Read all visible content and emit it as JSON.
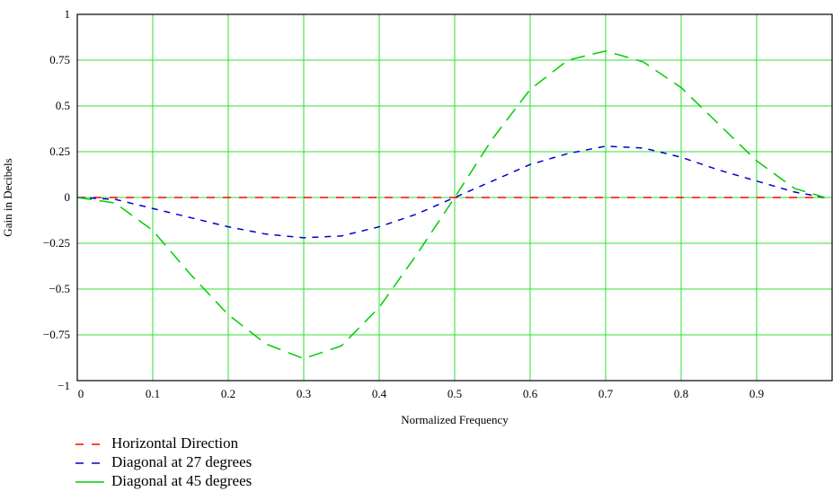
{
  "chart_data": {
    "type": "line",
    "title": "",
    "xlabel": "Normalized Frequency",
    "ylabel": "Gain in Decibels",
    "xlim": [
      0,
      1
    ],
    "ylim": [
      -1,
      1
    ],
    "grid": true,
    "legend_position": "bottom-left",
    "x_ticks": [
      "0",
      "0.1",
      "0.2",
      "0.3",
      "0.4",
      "0.5",
      "0.6",
      "0.7",
      "0.8",
      "0.9"
    ],
    "y_ticks": [
      "1",
      "0.75",
      "0.5",
      "0.25",
      "0",
      "−0.25",
      "−0.5",
      "−0.75",
      "−1"
    ],
    "x": [
      0,
      0.05,
      0.1,
      0.15,
      0.2,
      0.25,
      0.3,
      0.35,
      0.4,
      0.45,
      0.5,
      0.55,
      0.6,
      0.65,
      0.7,
      0.75,
      0.8,
      0.85,
      0.9,
      0.95,
      0.99
    ],
    "series": [
      {
        "name": "Horizontal Direction",
        "color": "#ff0000",
        "values": [
          0,
          0,
          0,
          0,
          0,
          0,
          0,
          0,
          0,
          0,
          0,
          0,
          0,
          0,
          0,
          0,
          0,
          0,
          0,
          0,
          0
        ]
      },
      {
        "name": "Diagonal at 27 degrees",
        "color": "#0000cc",
        "values": [
          0,
          -0.01,
          -0.06,
          -0.11,
          -0.16,
          -0.2,
          -0.22,
          -0.21,
          -0.16,
          -0.09,
          0,
          0.09,
          0.18,
          0.24,
          0.28,
          0.27,
          0.22,
          0.15,
          0.09,
          0.03,
          0
        ]
      },
      {
        "name": "Diagonal at 45 degrees",
        "color": "#00cc00",
        "values": [
          0,
          -0.03,
          -0.18,
          -0.42,
          -0.64,
          -0.8,
          -0.88,
          -0.81,
          -0.6,
          -0.31,
          0,
          0.32,
          0.59,
          0.75,
          0.8,
          0.74,
          0.6,
          0.4,
          0.2,
          0.05,
          0
        ]
      }
    ]
  }
}
